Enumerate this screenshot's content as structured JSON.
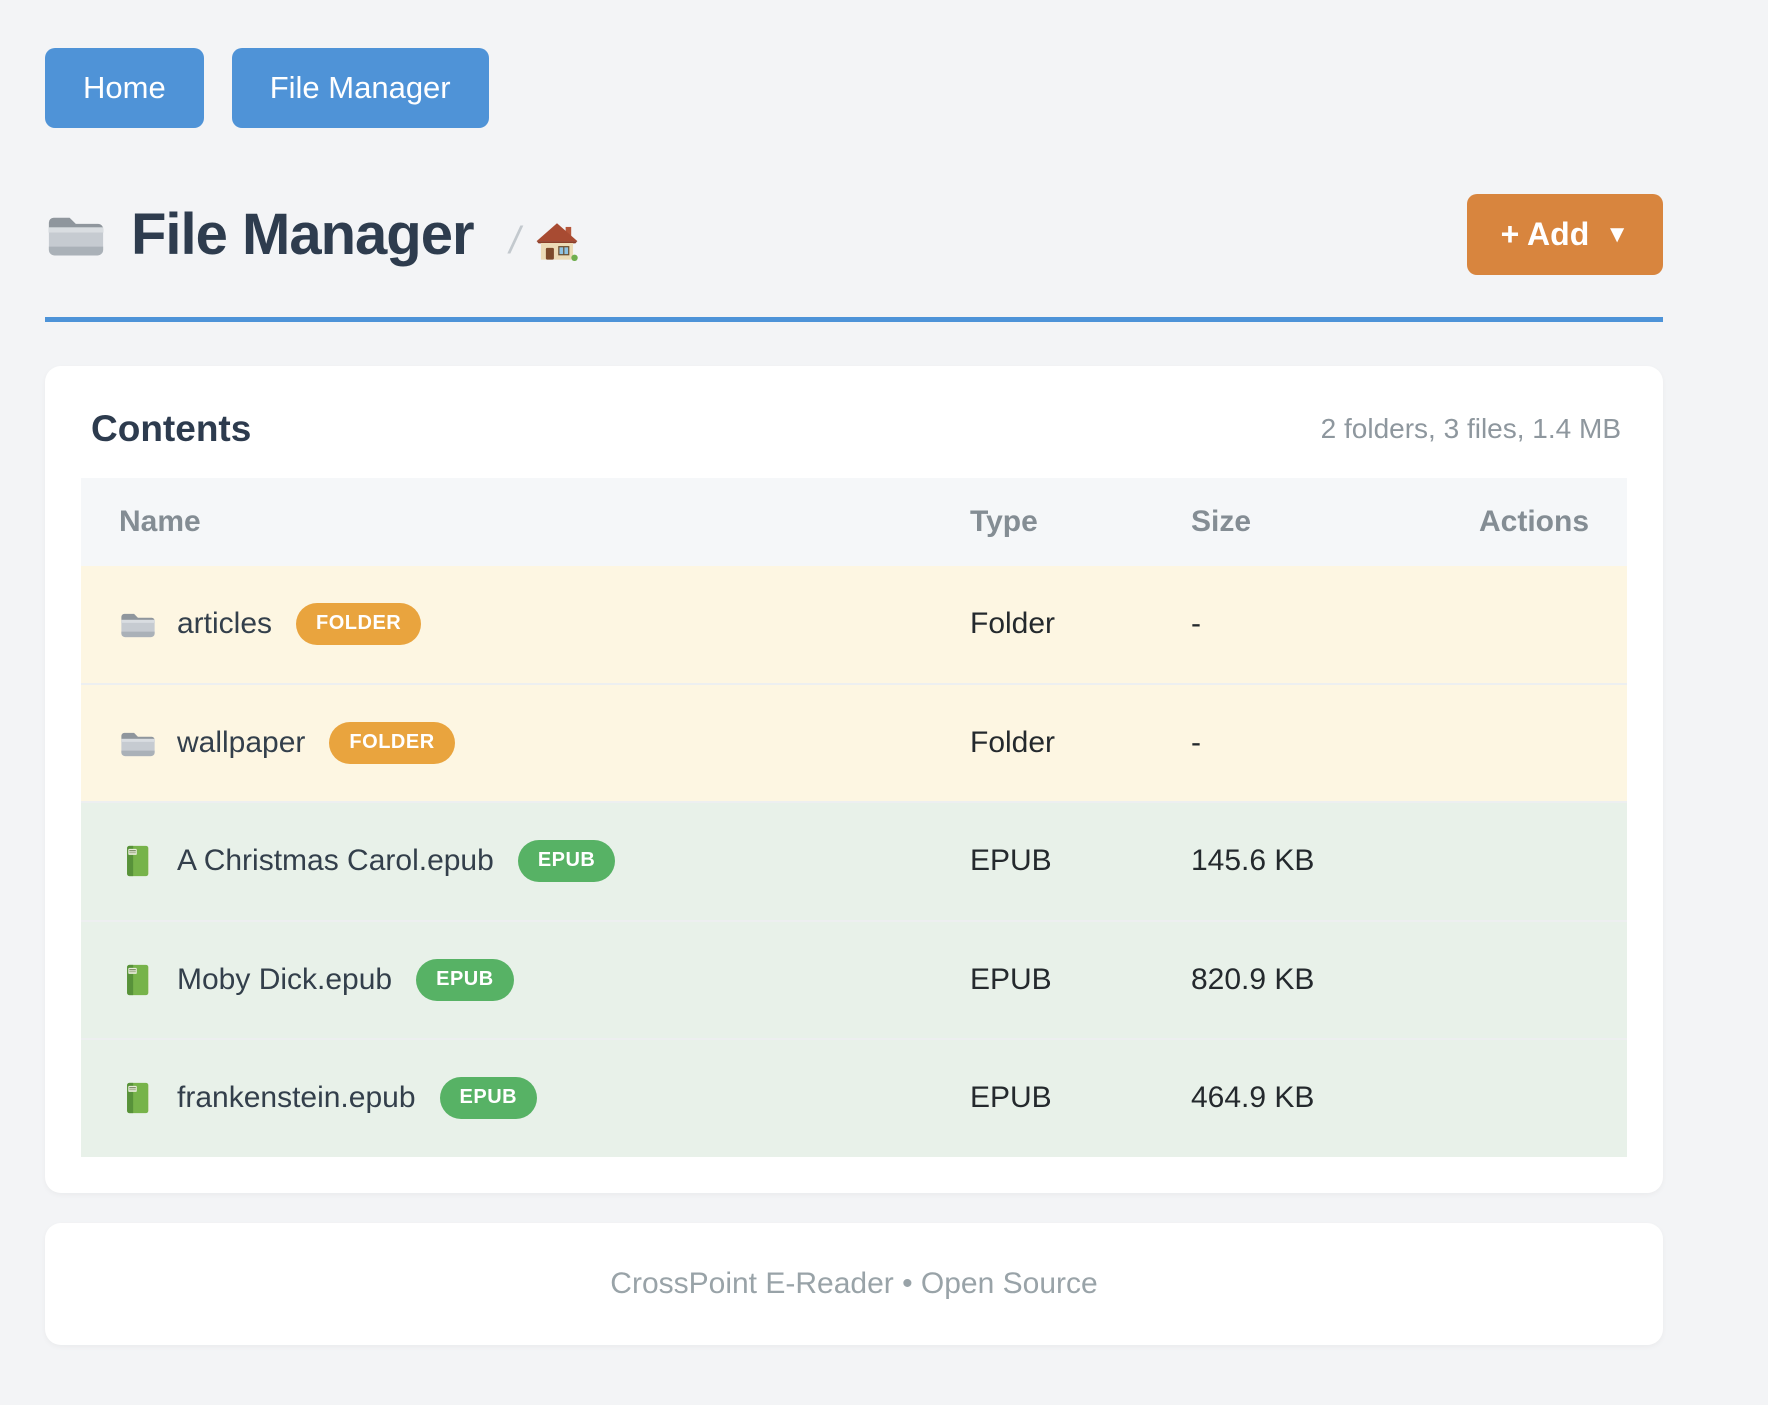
{
  "nav": {
    "home_label": "Home",
    "file_manager_label": "File Manager"
  },
  "header": {
    "title": "File Manager",
    "breadcrumb_separator": "/",
    "add_button": {
      "label": "+ Add",
      "caret": "▼"
    }
  },
  "contents": {
    "heading": "Contents",
    "summary": "2 folders, 3 files, 1.4 MB",
    "columns": {
      "name": "Name",
      "type": "Type",
      "size": "Size",
      "actions": "Actions"
    },
    "rows": [
      {
        "name": "articles",
        "badge": "FOLDER",
        "kind": "folder",
        "type": "Folder",
        "size": "-"
      },
      {
        "name": "wallpaper",
        "badge": "FOLDER",
        "kind": "folder",
        "type": "Folder",
        "size": "-"
      },
      {
        "name": "A Christmas Carol.epub",
        "badge": "EPUB",
        "kind": "epub",
        "type": "EPUB",
        "size": "145.6 KB"
      },
      {
        "name": "Moby Dick.epub",
        "badge": "EPUB",
        "kind": "epub",
        "type": "EPUB",
        "size": "820.9 KB"
      },
      {
        "name": "frankenstein.epub",
        "badge": "EPUB",
        "kind": "epub",
        "type": "EPUB",
        "size": "464.9 KB"
      }
    ]
  },
  "footer": {
    "text": "CrossPoint E-Reader • Open Source"
  },
  "colors": {
    "nav_button": "#4f93d7",
    "add_button": "#d8853e",
    "rule": "#4d93d8",
    "folder_badge": "#e9a43e",
    "epub_badge": "#57b265",
    "folder_row_bg": "#fdf6e2",
    "epub_row_bg": "#e8f1e9",
    "page_bg": "#f3f4f6"
  }
}
